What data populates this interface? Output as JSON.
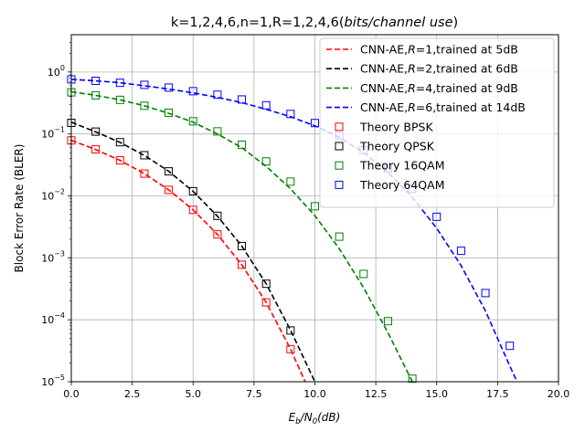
{
  "chart_data": {
    "type": "line",
    "title_parts": {
      "prefix": "k=1,2,4,6,n=1,R=1,2,4,6(",
      "italic": "bits/channel use",
      "suffix": ")"
    },
    "xlabel_parts": {
      "a": "E",
      "a_sub": "b",
      "b": "/N",
      "b_sub": "0",
      "c": "(dB)"
    },
    "ylabel": "Block Error Rate (BLER)",
    "xlim": [
      0,
      20
    ],
    "ylim": [
      1e-05,
      4
    ],
    "yscale": "log",
    "grid": true,
    "legend_position": "top-right",
    "x_ticks": [
      {
        "value": 0,
        "label": "0.0"
      },
      {
        "value": 2.5,
        "label": "2.5"
      },
      {
        "value": 5,
        "label": "5.0"
      },
      {
        "value": 7.5,
        "label": "7.5"
      },
      {
        "value": 10,
        "label": "10.0"
      },
      {
        "value": 12.5,
        "label": "12.5"
      },
      {
        "value": 15,
        "label": "15.0"
      },
      {
        "value": 17.5,
        "label": "17.5"
      },
      {
        "value": 20,
        "label": "20.0"
      }
    ],
    "y_ticks": [
      {
        "value": 1e-05,
        "mant": "10",
        "exp": "−5"
      },
      {
        "value": 0.0001,
        "mant": "10",
        "exp": "−4"
      },
      {
        "value": 0.001,
        "mant": "10",
        "exp": "−3"
      },
      {
        "value": 0.01,
        "mant": "10",
        "exp": "−2"
      },
      {
        "value": 0.1,
        "mant": "10",
        "exp": "−1"
      },
      {
        "value": 1,
        "mant": "10",
        "exp": "0"
      }
    ],
    "series": [
      {
        "name": "CNN-AE,R=1,trained at 5dB",
        "legend_parts": {
          "a": "CNN-AE,",
          "b": "R",
          "c": "=1,trained at 5dB"
        },
        "style": "dashed-line",
        "color": "#ff0000",
        "x": [
          0,
          1,
          2,
          3,
          4,
          5,
          6,
          7,
          8,
          9,
          9.6
        ],
        "y": [
          0.079,
          0.056,
          0.0375,
          0.0229,
          0.0125,
          0.00595,
          0.00239,
          0.000773,
          0.000191,
          3.36e-05,
          1e-05
        ]
      },
      {
        "name": "CNN-AE,R=2,trained at 6dB",
        "legend_parts": {
          "a": "CNN-AE,",
          "b": "R",
          "c": "=2,trained at 6dB"
        },
        "style": "dashed-line",
        "color": "#000000",
        "x": [
          0,
          1,
          2,
          3,
          4,
          5,
          6,
          7,
          8,
          9,
          10
        ],
        "y": [
          0.155,
          0.108,
          0.073,
          0.045,
          0.025,
          0.0118,
          0.0047,
          0.00155,
          0.00038,
          6.75e-05,
          1e-05
        ]
      },
      {
        "name": "CNN-AE,R=4,trained at 9dB",
        "legend_parts": {
          "a": "CNN-AE,",
          "b": "R",
          "c": "=4,trained at 9dB"
        },
        "style": "dashed-line",
        "color": "#008000",
        "x": [
          0,
          1,
          2,
          3,
          4,
          5,
          6,
          7,
          8,
          9,
          10,
          11,
          12,
          13,
          14
        ],
        "y": [
          0.48,
          0.42,
          0.355,
          0.285,
          0.215,
          0.155,
          0.1,
          0.06,
          0.03,
          0.013,
          0.0048,
          0.0014,
          0.00033,
          6.2e-05,
          1e-05
        ]
      },
      {
        "name": "CNN-AE,R=6,trained at 14dB",
        "legend_parts": {
          "a": "CNN-AE,",
          "b": "R",
          "c": "=6,trained at 14dB"
        },
        "style": "dashed-line",
        "color": "#0000ff",
        "x": [
          0,
          1,
          2,
          3,
          4,
          5,
          6,
          7,
          8,
          9,
          10,
          11,
          12,
          13,
          14,
          15,
          16,
          17,
          18,
          18.3
        ],
        "y": [
          0.76,
          0.72,
          0.67,
          0.6,
          0.53,
          0.46,
          0.39,
          0.32,
          0.25,
          0.19,
          0.135,
          0.088,
          0.05,
          0.024,
          0.0095,
          0.003,
          0.00075,
          0.00014,
          1.8e-05,
          1e-05
        ]
      },
      {
        "name": "Theory BPSK",
        "style": "square-marker",
        "color": "#ff0000",
        "x": [
          0,
          1,
          2,
          3,
          4,
          5,
          6,
          7,
          8,
          9
        ],
        "y": [
          0.0786,
          0.0563,
          0.0375,
          0.0229,
          0.0125,
          0.00595,
          0.00239,
          0.000773,
          0.000191,
          3.36e-05
        ]
      },
      {
        "name": "Theory QPSK",
        "style": "square-marker",
        "color": "#000000",
        "x": [
          0,
          1,
          2,
          3,
          4,
          5,
          6,
          7,
          8,
          9
        ],
        "y": [
          0.151,
          0.109,
          0.0736,
          0.0453,
          0.0249,
          0.0119,
          0.00477,
          0.00155,
          0.000382,
          6.72e-05
        ]
      },
      {
        "name": "Theory 16QAM",
        "style": "square-marker",
        "color": "#008000",
        "x": [
          0,
          1,
          2,
          3,
          4,
          5,
          6,
          7,
          8,
          9,
          10,
          11,
          12,
          13,
          14
        ],
        "y": [
          0.47,
          0.42,
          0.355,
          0.285,
          0.22,
          0.16,
          0.11,
          0.067,
          0.036,
          0.017,
          0.0068,
          0.0022,
          0.00055,
          9.5e-05,
          1.12e-05
        ]
      },
      {
        "name": "Theory 64QAM",
        "style": "square-marker",
        "color": "#0000ff",
        "x": [
          0,
          1,
          2,
          3,
          4,
          5,
          6,
          7,
          8,
          9,
          10,
          11,
          12,
          13,
          14,
          15,
          16,
          17,
          18
        ],
        "y": [
          0.76,
          0.72,
          0.67,
          0.62,
          0.56,
          0.49,
          0.43,
          0.36,
          0.29,
          0.21,
          0.15,
          0.095,
          0.055,
          0.028,
          0.013,
          0.0046,
          0.0013,
          0.00027,
          3.8e-05
        ]
      }
    ]
  }
}
